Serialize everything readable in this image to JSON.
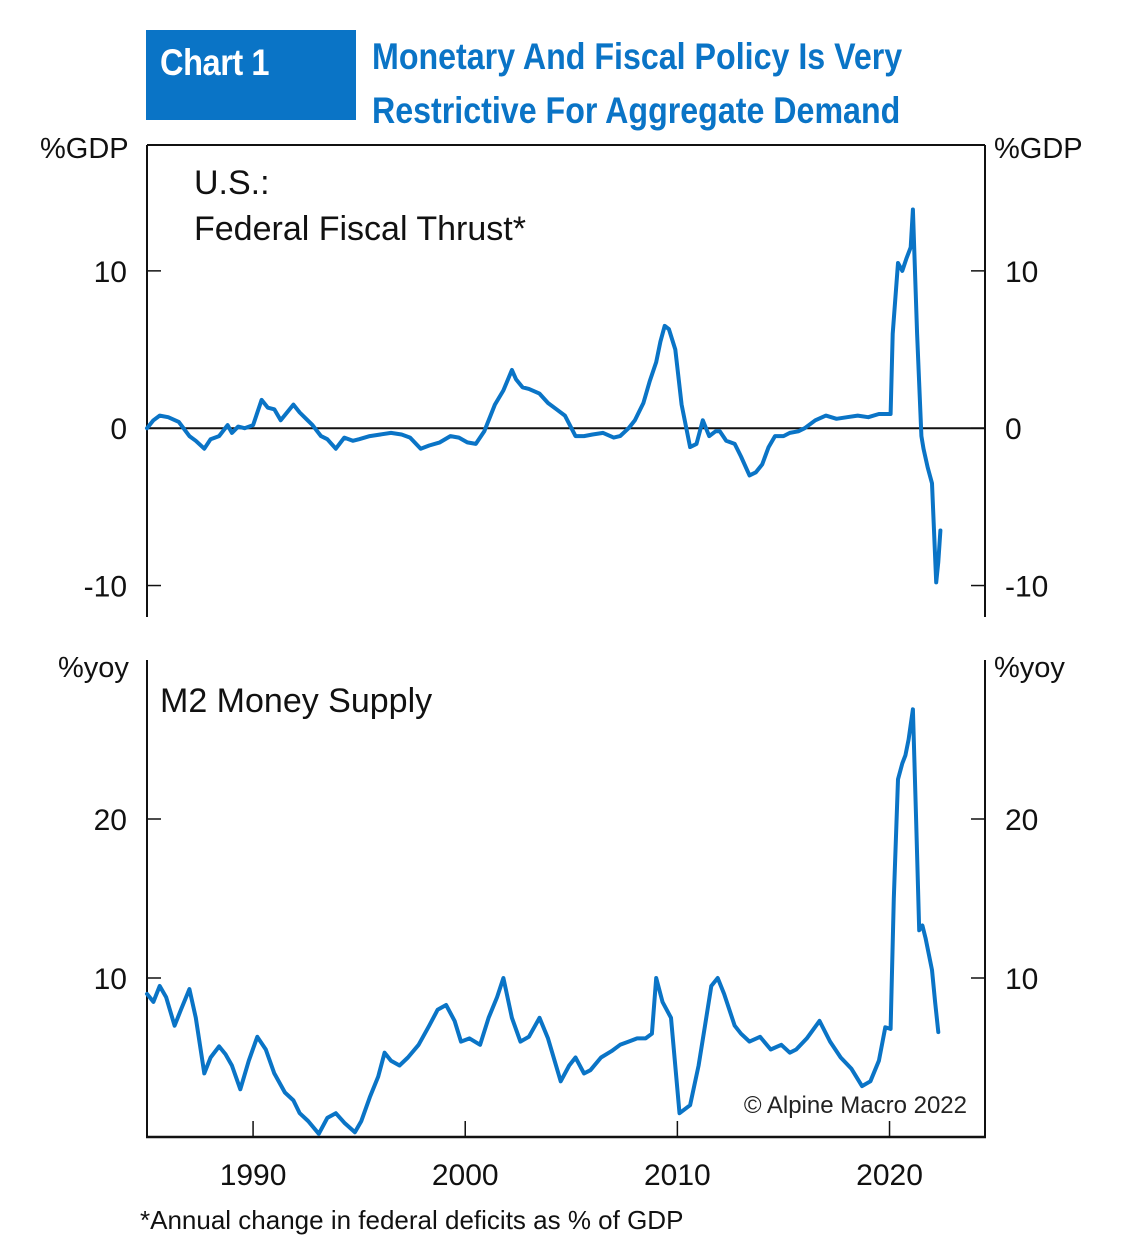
{
  "header": {
    "badge": "Chart 1",
    "title_line1": "Monetary And Fiscal Policy Is Very",
    "title_line2": "Restrictive For Aggregate Demand"
  },
  "colors": {
    "brand": "#0a74c6",
    "series": "#0a74c6",
    "axis": "#111111"
  },
  "footnote": "*Annual change in federal deficits as % of GDP",
  "copyright": "© Alpine Macro 2022",
  "chart_data": [
    {
      "type": "line",
      "title_line1": "U.S.:",
      "title_line2": "Federal Fiscal Thrust*",
      "ylabel_left": "%GDP",
      "ylabel_right": "%GDP",
      "xlim": [
        1985.0,
        2024.5
      ],
      "ylim": [
        -12,
        18
      ],
      "yticks": [
        10,
        0,
        -10
      ],
      "ytick_labels": [
        "10",
        "0",
        "-10"
      ],
      "zero_line": true,
      "grid": false,
      "series": [
        {
          "name": "Federal Fiscal Thrust",
          "x": [
            1985.0,
            1985.3,
            1985.6,
            1986.0,
            1986.5,
            1987.0,
            1987.3,
            1987.7,
            1988.0,
            1988.4,
            1988.8,
            1989.0,
            1989.3,
            1989.6,
            1990.0,
            1990.4,
            1990.7,
            1991.0,
            1991.3,
            1991.6,
            1991.9,
            1992.2,
            1992.5,
            1992.8,
            1993.2,
            1993.5,
            1993.9,
            1994.3,
            1994.7,
            1995.0,
            1995.5,
            1996.0,
            1996.5,
            1997.0,
            1997.4,
            1997.9,
            1998.3,
            1998.8,
            1999.3,
            1999.7,
            2000.1,
            2000.5,
            2000.9,
            2001.4,
            2001.8,
            2002.2,
            2002.4,
            2002.7,
            2003.0,
            2003.5,
            2003.9,
            2004.3,
            2004.7,
            2005.2,
            2005.6,
            2006.0,
            2006.5,
            2007.0,
            2007.3,
            2007.7,
            2008.0,
            2008.4,
            2008.7,
            2009.0,
            2009.2,
            2009.4,
            2009.6,
            2009.9,
            2010.2,
            2010.6,
            2010.9,
            2011.2,
            2011.5,
            2011.8,
            2012.0,
            2012.3,
            2012.7,
            2013.0,
            2013.4,
            2013.7,
            2014.0,
            2014.3,
            2014.6,
            2015.0,
            2015.3,
            2015.7,
            2016.0,
            2016.5,
            2017.0,
            2017.5,
            2018.0,
            2018.5,
            2019.0,
            2019.5,
            2020.05,
            2020.15,
            2020.4,
            2020.6,
            2020.8,
            2021.0,
            2021.1,
            2021.3,
            2021.5,
            2021.6,
            2021.8,
            2022.0,
            2022.2,
            2022.3,
            2022.4
          ],
          "y": [
            0.0,
            0.5,
            0.8,
            0.7,
            0.4,
            -0.5,
            -0.8,
            -1.3,
            -0.7,
            -0.5,
            0.2,
            -0.3,
            0.1,
            0.0,
            0.2,
            1.8,
            1.3,
            1.2,
            0.5,
            1.0,
            1.5,
            1.0,
            0.6,
            0.2,
            -0.5,
            -0.7,
            -1.3,
            -0.6,
            -0.8,
            -0.7,
            -0.5,
            -0.4,
            -0.3,
            -0.4,
            -0.6,
            -1.3,
            -1.1,
            -0.9,
            -0.5,
            -0.6,
            -0.9,
            -1.0,
            -0.2,
            1.5,
            2.4,
            3.7,
            3.1,
            2.6,
            2.5,
            2.2,
            1.6,
            1.2,
            0.8,
            -0.5,
            -0.5,
            -0.4,
            -0.3,
            -0.6,
            -0.5,
            0.0,
            0.5,
            1.6,
            3.0,
            4.2,
            5.5,
            6.5,
            6.3,
            5.0,
            1.5,
            -1.2,
            -1.0,
            0.5,
            -0.5,
            -0.2,
            -0.2,
            -0.8,
            -1.0,
            -1.8,
            -3.0,
            -2.8,
            -2.3,
            -1.2,
            -0.5,
            -0.5,
            -0.3,
            -0.2,
            0.0,
            0.5,
            0.8,
            0.6,
            0.7,
            0.8,
            0.7,
            0.9,
            0.9,
            6.0,
            10.5,
            10.0,
            10.8,
            11.5,
            13.9,
            6.0,
            -0.5,
            -1.3,
            -2.5,
            -3.5,
            -9.8,
            -8.5,
            -6.5
          ]
        }
      ]
    },
    {
      "type": "line",
      "title": "M2 Money Supply",
      "ylabel_left": "%yoy",
      "ylabel_right": "%yoy",
      "xlim": [
        1985.0,
        2024.5
      ],
      "ylim": [
        0,
        30
      ],
      "yticks": [
        20,
        10
      ],
      "ytick_labels": [
        "20",
        "10"
      ],
      "xticks": [
        1990,
        2000,
        2010,
        2020
      ],
      "xtick_labels": [
        "1990",
        "2000",
        "2010",
        "2020"
      ],
      "grid": false,
      "series": [
        {
          "name": "M2 Money Supply",
          "x": [
            1985.0,
            1985.3,
            1985.6,
            1985.9,
            1986.3,
            1986.6,
            1987.0,
            1987.3,
            1987.7,
            1988.0,
            1988.4,
            1988.7,
            1989.0,
            1989.4,
            1989.8,
            1990.2,
            1990.6,
            1991.0,
            1991.5,
            1991.9,
            1992.2,
            1992.6,
            1993.1,
            1993.5,
            1993.9,
            1994.3,
            1994.8,
            1995.1,
            1995.5,
            1995.9,
            1996.2,
            1996.5,
            1996.9,
            1997.3,
            1997.8,
            1998.3,
            1998.7,
            1999.1,
            1999.5,
            1999.8,
            2000.2,
            2000.7,
            2001.1,
            2001.5,
            2001.8,
            2002.2,
            2002.6,
            2003.0,
            2003.5,
            2003.9,
            2004.5,
            2004.9,
            2005.2,
            2005.6,
            2005.9,
            2006.4,
            2006.9,
            2007.3,
            2007.7,
            2008.1,
            2008.5,
            2008.8,
            2009.0,
            2009.3,
            2009.7,
            2010.1,
            2010.6,
            2011.0,
            2011.3,
            2011.6,
            2011.9,
            2012.2,
            2012.7,
            2013.0,
            2013.4,
            2013.9,
            2014.4,
            2014.9,
            2015.3,
            2015.6,
            2016.1,
            2016.7,
            2017.2,
            2017.7,
            2018.2,
            2018.7,
            2019.1,
            2019.5,
            2019.8,
            2020.05,
            2020.2,
            2020.4,
            2020.6,
            2020.75,
            2020.9,
            2021.1,
            2021.25,
            2021.4,
            2021.55,
            2021.7,
            2021.85,
            2022.0,
            2022.15,
            2022.3
          ],
          "y": [
            9.0,
            8.5,
            9.5,
            8.8,
            7.0,
            8.0,
            9.3,
            7.5,
            4.0,
            5.0,
            5.7,
            5.2,
            4.5,
            3.0,
            4.8,
            6.3,
            5.5,
            4.0,
            2.8,
            2.3,
            1.5,
            1.0,
            0.2,
            1.2,
            1.5,
            0.9,
            0.3,
            1.0,
            2.5,
            3.8,
            5.3,
            4.8,
            4.5,
            5.0,
            5.8,
            7.0,
            8.0,
            8.3,
            7.3,
            6.0,
            6.2,
            5.8,
            7.5,
            8.8,
            10.0,
            7.5,
            6.0,
            6.3,
            7.5,
            6.2,
            3.5,
            4.5,
            5.0,
            4.0,
            4.2,
            5.0,
            5.4,
            5.8,
            6.0,
            6.2,
            6.2,
            6.5,
            10.0,
            8.5,
            7.5,
            1.5,
            2.0,
            4.5,
            7.0,
            9.5,
            10.0,
            9.0,
            7.0,
            6.5,
            6.0,
            6.3,
            5.5,
            5.8,
            5.3,
            5.5,
            6.2,
            7.3,
            6.0,
            5.0,
            4.3,
            3.2,
            3.5,
            4.8,
            6.9,
            6.8,
            15.0,
            22.5,
            23.5,
            24.0,
            25.0,
            26.9,
            20.0,
            13.0,
            13.3,
            12.5,
            11.5,
            10.5,
            8.5,
            6.6
          ]
        }
      ]
    }
  ]
}
